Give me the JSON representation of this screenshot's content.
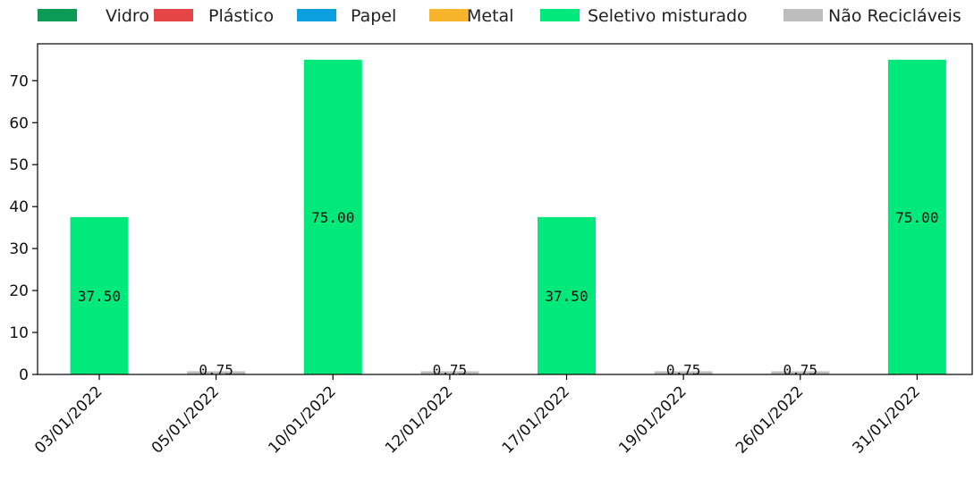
{
  "chart_data": {
    "type": "bar",
    "stacked": true,
    "categories": [
      "03/01/2022",
      "05/01/2022",
      "10/01/2022",
      "12/01/2022",
      "17/01/2022",
      "19/01/2022",
      "26/01/2022",
      "31/01/2022"
    ],
    "series": [
      {
        "name": "Vidro",
        "color": "#0c9b55",
        "values": [
          0,
          0,
          0,
          0,
          0,
          0,
          0,
          0
        ]
      },
      {
        "name": "Plástico",
        "color": "#e64545",
        "values": [
          0,
          0,
          0,
          0,
          0,
          0,
          0,
          0
        ]
      },
      {
        "name": "Papel",
        "color": "#0b9fe0",
        "values": [
          0,
          0,
          0,
          0,
          0,
          0,
          0,
          0
        ]
      },
      {
        "name": "Metal",
        "color": "#f7b52b",
        "values": [
          0,
          0,
          0,
          0,
          0,
          0,
          0,
          0
        ]
      },
      {
        "name": "Seletivo misturado",
        "color": "#00e97a",
        "values": [
          37.5,
          0,
          75,
          0,
          37.5,
          0,
          0,
          75
        ]
      },
      {
        "name": "Não Recicláveis",
        "color": "#bdbdbd",
        "values": [
          0,
          0.75,
          0,
          0.75,
          0,
          0.75,
          0.75,
          0
        ]
      }
    ],
    "data_labels": [
      "37.50",
      "0.75",
      "75.00",
      "0.75",
      "37.50",
      "0.75",
      "0.75",
      "75.00"
    ],
    "yticks": [
      "0",
      "10",
      "20",
      "30",
      "40",
      "50",
      "60",
      "70"
    ],
    "ylim": [
      0,
      78.8
    ],
    "xlabel": "",
    "ylabel": "",
    "title": "",
    "legend_position": "top",
    "grid": false
  }
}
